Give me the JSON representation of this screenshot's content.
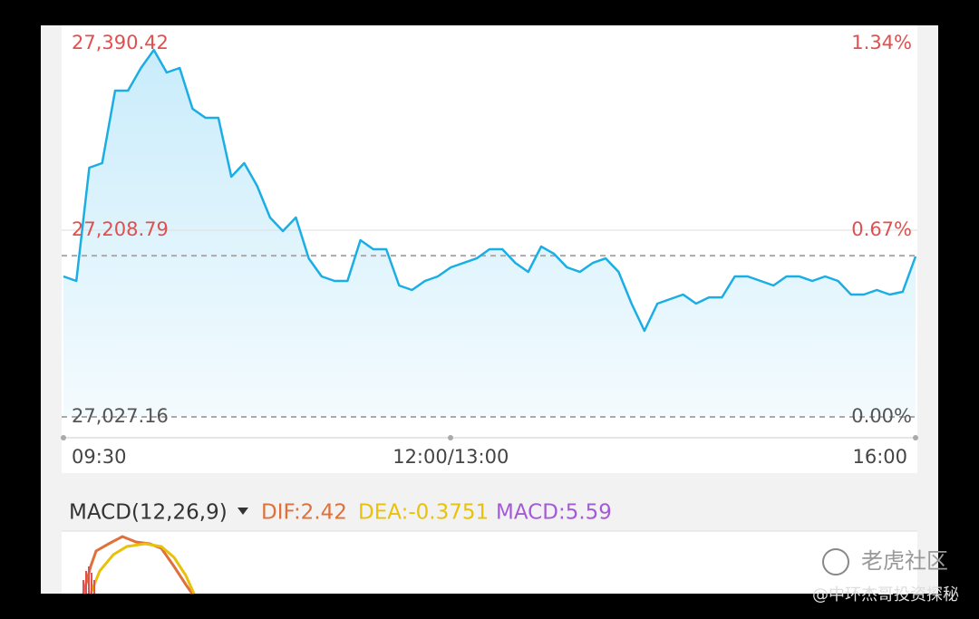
{
  "chart_data": {
    "type": "line",
    "categories": [
      "09:30",
      null,
      null,
      null,
      null,
      null,
      null,
      null,
      null,
      null,
      null,
      null,
      null,
      null,
      null,
      null,
      null,
      null,
      null,
      null,
      null,
      null,
      null,
      null,
      null,
      null,
      null,
      null,
      null,
      null,
      "12:00/13:00",
      null,
      null,
      null,
      null,
      null,
      null,
      null,
      null,
      null,
      null,
      null,
      null,
      null,
      null,
      null,
      null,
      null,
      null,
      null,
      null,
      null,
      null,
      null,
      null,
      null,
      null,
      null,
      null,
      null,
      null,
      null,
      null,
      null,
      null,
      null,
      "16:00"
    ],
    "values": [
      27163.8,
      27159.4,
      27269.6,
      27274.0,
      27344.6,
      27344.6,
      27366.6,
      27384.2,
      27362.2,
      27366.6,
      27326.9,
      27318.1,
      27318.1,
      27260.8,
      27274.0,
      27252.0,
      27221.1,
      27207.9,
      27221.1,
      27181.4,
      27163.8,
      27159.4,
      27159.4,
      27199.1,
      27190.3,
      27190.3,
      27155.0,
      27150.6,
      27159.4,
      27163.8,
      27172.6,
      27177.0,
      27181.4,
      27190.3,
      27190.3,
      27177.0,
      27168.2,
      27192.9,
      27185.8,
      27172.6,
      27168.2,
      27177.0,
      27181.4,
      27168.2,
      27137.4,
      27110.9,
      27137.4,
      27141.8,
      27146.2,
      27137.4,
      27143.5,
      27143.5,
      27163.8,
      27163.8,
      27159.4,
      27155.0,
      27163.8,
      27163.8,
      27159.4,
      27163.8,
      27159.4,
      27146.2,
      27146.2,
      27150.6,
      27146.2,
      27148.8,
      27183.2
    ],
    "color": "#1aaee5",
    "ylim": [
      27027.16,
      27390.42
    ],
    "yticks": [
      {
        "value": 27027.16,
        "label": "27,027.16"
      },
      {
        "value": 27208.79,
        "label": "27,208.79"
      },
      {
        "value": 27390.42,
        "label": "27,390.42"
      }
    ],
    "y2lim": [
      0,
      1.34
    ],
    "y2ticks": [
      {
        "value": 0,
        "label": "0.00%"
      },
      {
        "value": 0.67,
        "label": "0.67%"
      },
      {
        "value": 1.34,
        "label": "1.34%"
      }
    ],
    "reference_line": 27184,
    "grid": true
  },
  "macd": {
    "name": "MACD(12,26,9)",
    "dif": "DIF:2.42",
    "dea": "DEA:-0.3751",
    "macd": "MACD:5.59"
  },
  "watermark": {
    "logo": "老虎社区",
    "author": "@中环杰哥投资探秘"
  }
}
